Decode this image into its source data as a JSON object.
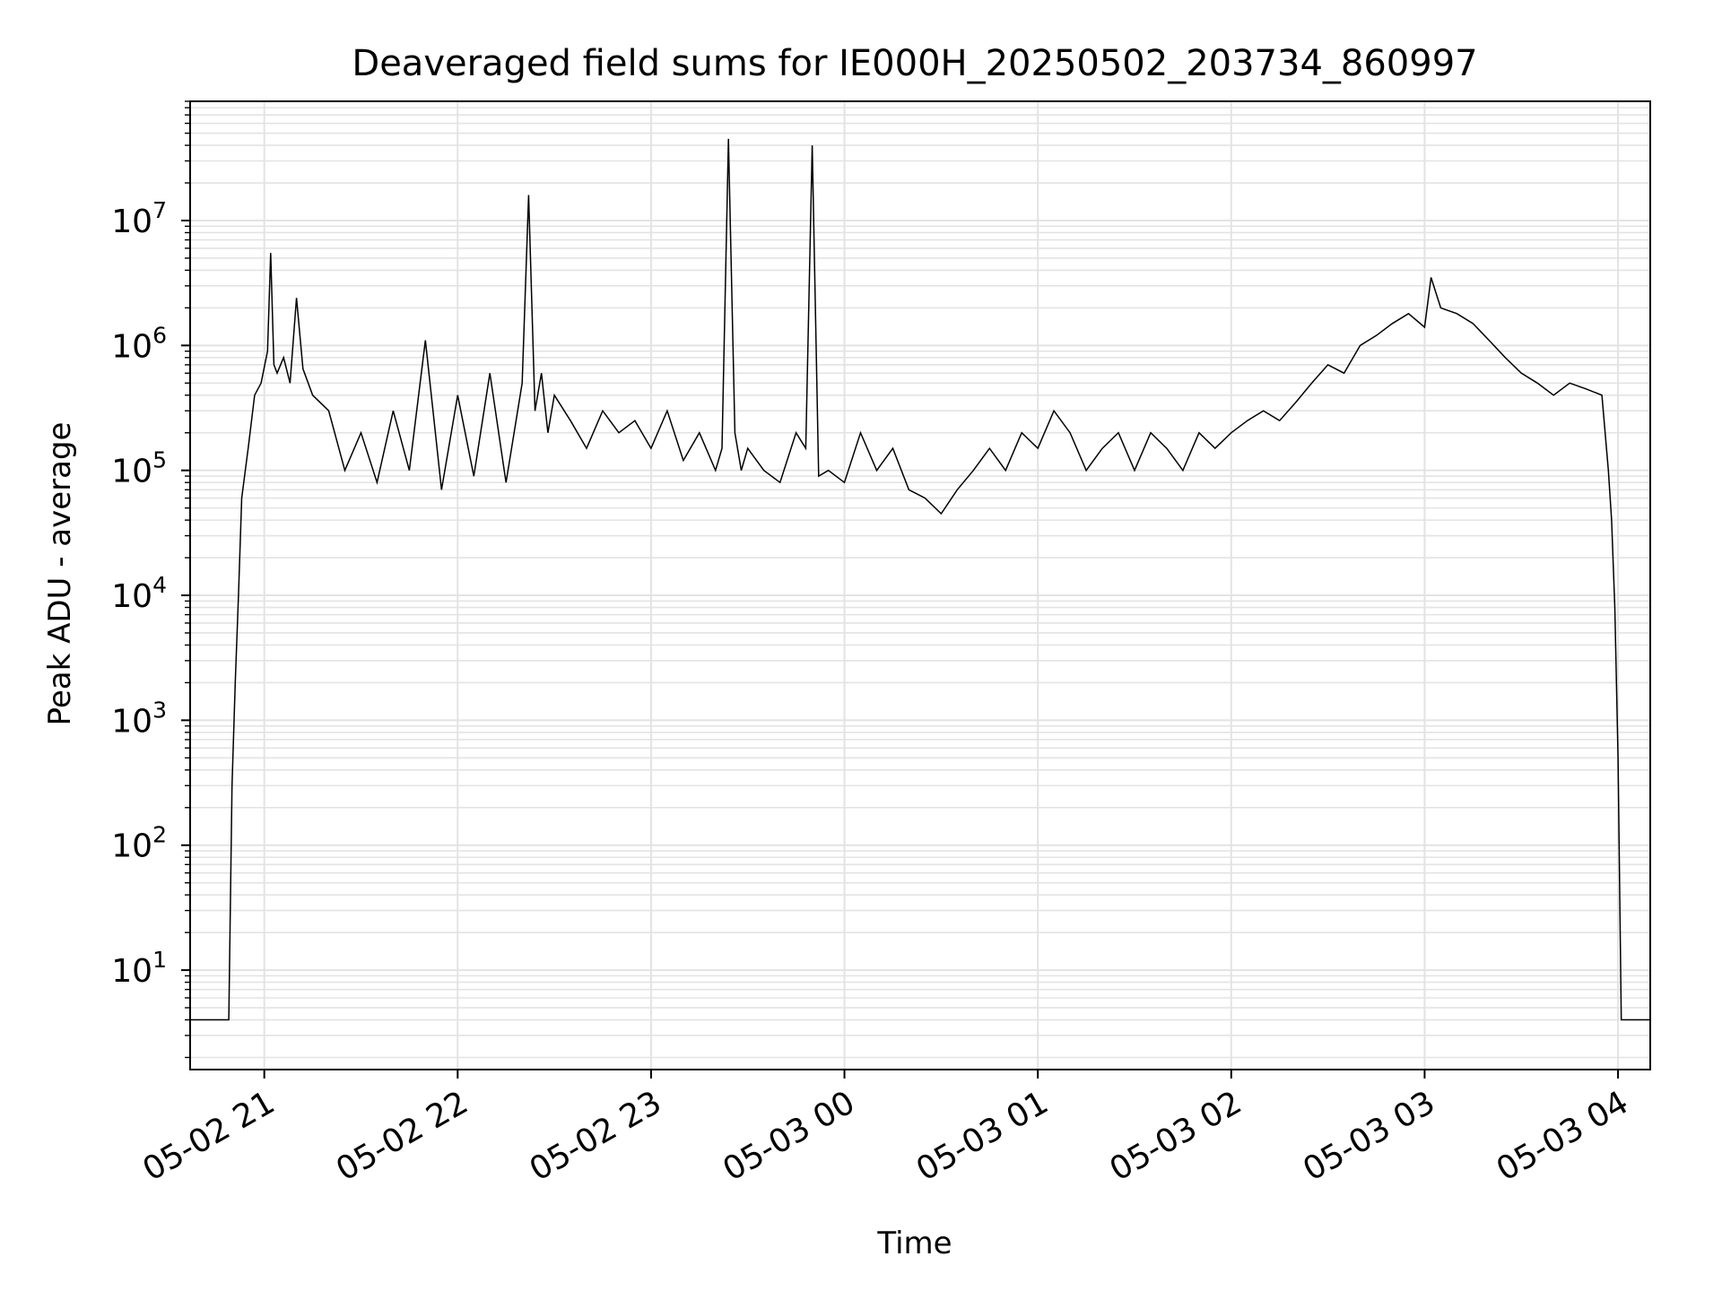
{
  "chart_data": {
    "type": "line",
    "title": "Deaveraged field sums for IE000H_20250502_203734_860997",
    "xlabel": "Time",
    "ylabel": "Peak ADU - average",
    "yscale": "log",
    "ylim": [
      1.6,
      90000000
    ],
    "xlim": [
      "2025-05-02 20:37",
      "2025-05-03 04:10"
    ],
    "grid": true,
    "line_color": "#000000",
    "grid_color": "#e3e3e3",
    "xticks": [
      {
        "label": "05-02 21",
        "time": "2025-05-02 21:00"
      },
      {
        "label": "05-02 22",
        "time": "2025-05-02 22:00"
      },
      {
        "label": "05-02 23",
        "time": "2025-05-02 23:00"
      },
      {
        "label": "05-03 00",
        "time": "2025-05-03 00:00"
      },
      {
        "label": "05-03 01",
        "time": "2025-05-03 01:00"
      },
      {
        "label": "05-03 02",
        "time": "2025-05-03 02:00"
      },
      {
        "label": "05-03 03",
        "time": "2025-05-03 03:00"
      },
      {
        "label": "05-03 04",
        "time": "2025-05-03 04:00"
      }
    ],
    "yticks": [
      {
        "base": "10",
        "exp": "1",
        "value": 10
      },
      {
        "base": "10",
        "exp": "2",
        "value": 100
      },
      {
        "base": "10",
        "exp": "3",
        "value": 1000
      },
      {
        "base": "10",
        "exp": "4",
        "value": 10000
      },
      {
        "base": "10",
        "exp": "5",
        "value": 100000
      },
      {
        "base": "10",
        "exp": "6",
        "value": 1000000
      },
      {
        "base": "10",
        "exp": "7",
        "value": 10000000
      }
    ],
    "series": [
      {
        "x": [
          "2025-05-02 20:37",
          "2025-05-02 20:49",
          "2025-05-02 20:50",
          "2025-05-02 20:51",
          "2025-05-02 20:52",
          "2025-05-02 20:53",
          "2025-05-02 20:55",
          "2025-05-02 20:57",
          "2025-05-02 20:59",
          "2025-05-02 21:01",
          "2025-05-02 21:02",
          "2025-05-02 21:03",
          "2025-05-02 21:04",
          "2025-05-02 21:06",
          "2025-05-02 21:08",
          "2025-05-02 21:10",
          "2025-05-02 21:12",
          "2025-05-02 21:15",
          "2025-05-02 21:20",
          "2025-05-02 21:25",
          "2025-05-02 21:30",
          "2025-05-02 21:35",
          "2025-05-02 21:40",
          "2025-05-02 21:45",
          "2025-05-02 21:50",
          "2025-05-02 21:55",
          "2025-05-02 22:00",
          "2025-05-02 22:05",
          "2025-05-02 22:10",
          "2025-05-02 22:15",
          "2025-05-02 22:20",
          "2025-05-02 22:22",
          "2025-05-02 22:24",
          "2025-05-02 22:26",
          "2025-05-02 22:28",
          "2025-05-02 22:30",
          "2025-05-02 22:35",
          "2025-05-02 22:40",
          "2025-05-02 22:45",
          "2025-05-02 22:50",
          "2025-05-02 22:55",
          "2025-05-02 23:00",
          "2025-05-02 23:05",
          "2025-05-02 23:10",
          "2025-05-02 23:15",
          "2025-05-02 23:20",
          "2025-05-02 23:22",
          "2025-05-02 23:24",
          "2025-05-02 23:26",
          "2025-05-02 23:28",
          "2025-05-02 23:30",
          "2025-05-02 23:35",
          "2025-05-02 23:40",
          "2025-05-02 23:45",
          "2025-05-02 23:48",
          "2025-05-02 23:50",
          "2025-05-02 23:52",
          "2025-05-02 23:55",
          "2025-05-03 00:00",
          "2025-05-03 00:05",
          "2025-05-03 00:10",
          "2025-05-03 00:15",
          "2025-05-03 00:20",
          "2025-05-03 00:25",
          "2025-05-03 00:30",
          "2025-05-03 00:35",
          "2025-05-03 00:40",
          "2025-05-03 00:45",
          "2025-05-03 00:50",
          "2025-05-03 00:55",
          "2025-05-03 01:00",
          "2025-05-03 01:05",
          "2025-05-03 01:10",
          "2025-05-03 01:15",
          "2025-05-03 01:20",
          "2025-05-03 01:25",
          "2025-05-03 01:30",
          "2025-05-03 01:35",
          "2025-05-03 01:40",
          "2025-05-03 01:45",
          "2025-05-03 01:50",
          "2025-05-03 01:55",
          "2025-05-03 02:00",
          "2025-05-03 02:05",
          "2025-05-03 02:10",
          "2025-05-03 02:15",
          "2025-05-03 02:20",
          "2025-05-03 02:25",
          "2025-05-03 02:30",
          "2025-05-03 02:35",
          "2025-05-03 02:40",
          "2025-05-03 02:45",
          "2025-05-03 02:50",
          "2025-05-03 02:55",
          "2025-05-03 03:00",
          "2025-05-03 03:02",
          "2025-05-03 03:05",
          "2025-05-03 03:10",
          "2025-05-03 03:15",
          "2025-05-03 03:20",
          "2025-05-03 03:25",
          "2025-05-03 03:30",
          "2025-05-03 03:35",
          "2025-05-03 03:40",
          "2025-05-03 03:45",
          "2025-05-03 03:50",
          "2025-05-03 03:55",
          "2025-05-03 03:57",
          "2025-05-03 03:58",
          "2025-05-03 03:59",
          "2025-05-03 04:00",
          "2025-05-03 04:01",
          "2025-05-03 04:02",
          "2025-05-03 04:03",
          "2025-05-03 04:04",
          "2025-05-03 04:10"
        ],
        "y": [
          4,
          4,
          300,
          2000,
          10000,
          60000,
          150000,
          400000,
          500000,
          900000,
          5500000,
          700000,
          600000,
          800000,
          500000,
          2400000,
          650000,
          400000,
          300000,
          100000,
          200000,
          80000,
          300000,
          100000,
          1100000,
          70000,
          400000,
          90000,
          600000,
          80000,
          500000,
          16000000,
          300000,
          600000,
          200000,
          400000,
          250000,
          150000,
          300000,
          200000,
          250000,
          150000,
          300000,
          120000,
          200000,
          100000,
          150000,
          45000000,
          200000,
          100000,
          150000,
          100000,
          80000,
          200000,
          150000,
          40000000,
          90000,
          100000,
          80000,
          200000,
          100000,
          150000,
          70000,
          60000,
          45000,
          70000,
          100000,
          150000,
          100000,
          200000,
          150000,
          300000,
          200000,
          100000,
          150000,
          200000,
          100000,
          200000,
          150000,
          100000,
          200000,
          150000,
          200000,
          250000,
          300000,
          250000,
          350000,
          500000,
          700000,
          600000,
          1000000,
          1200000,
          1500000,
          1800000,
          1400000,
          3500000,
          2000000,
          1800000,
          1500000,
          1100000,
          800000,
          600000,
          500000,
          400000,
          500000,
          450000,
          400000,
          100000,
          40000,
          8000,
          500,
          4,
          4,
          4,
          4,
          4
        ]
      }
    ]
  }
}
